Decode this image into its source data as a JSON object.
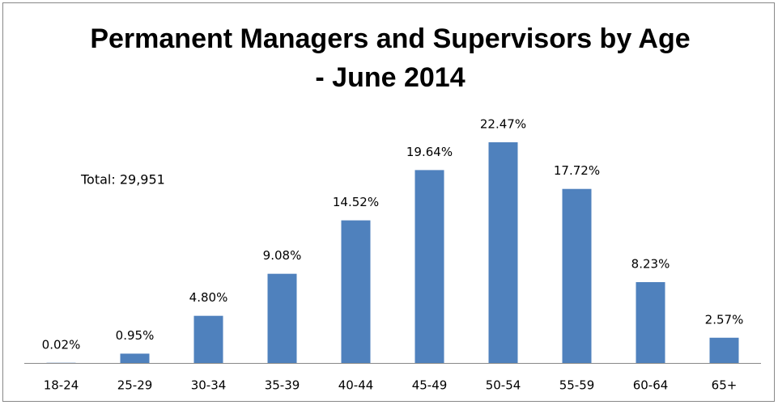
{
  "chart_data": {
    "type": "bar",
    "title": [
      "Permanent Managers and Supervisors by Age",
      "- June 2014"
    ],
    "annotation": "Total: 29,951",
    "categories": [
      "18-24",
      "25-29",
      "30-34",
      "35-39",
      "40-44",
      "45-49",
      "50-54",
      "55-59",
      "60-64",
      "65+"
    ],
    "values": [
      0.02,
      0.95,
      4.8,
      9.08,
      14.52,
      19.64,
      22.47,
      17.72,
      8.23,
      2.57
    ],
    "value_labels": [
      "0.02%",
      "0.95%",
      "4.80%",
      "9.08%",
      "14.52%",
      "19.64%",
      "22.47%",
      "17.72%",
      "8.23%",
      "2.57%"
    ],
    "color": "#4f81bd"
  }
}
